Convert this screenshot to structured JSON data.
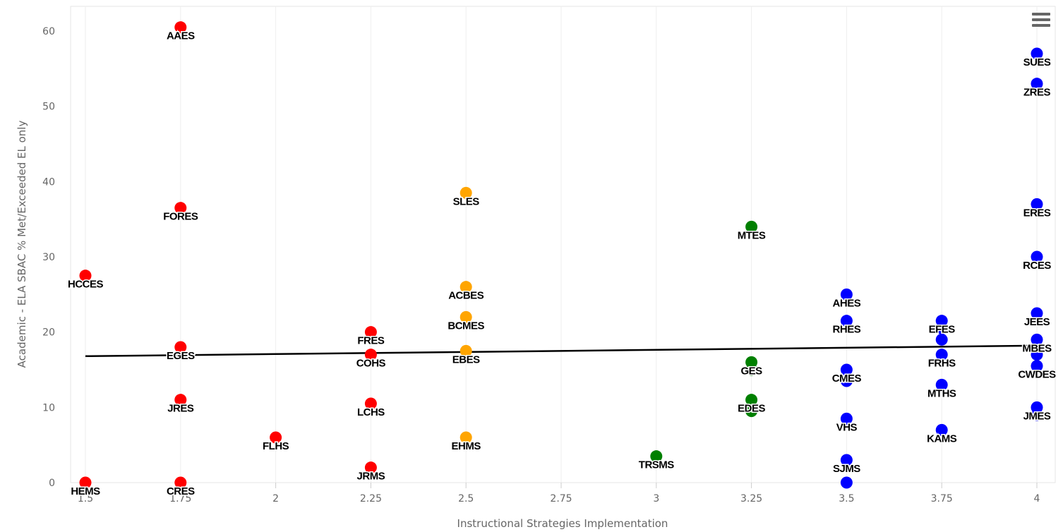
{
  "chart_data": {
    "type": "scatter",
    "xlabel": "Instructional Strategies Implementation",
    "ylabel": "Academic - ELA SBAC % Met/Exceeded EL only",
    "xlim": [
      1.5,
      4
    ],
    "ylim": [
      0,
      60
    ],
    "x_ticks": [
      "1.5",
      "1.75",
      "2",
      "2.25",
      "2.5",
      "2.75",
      "3",
      "3.25",
      "3.5",
      "3.75",
      "4"
    ],
    "y_ticks": [
      "0",
      "10",
      "20",
      "30",
      "40",
      "50",
      "60"
    ],
    "grid": "vertical",
    "colors": {
      "red": "#ff0000",
      "orange": "#ffa500",
      "green": "#008000",
      "blue": "#0000ff",
      "trend": "#000000"
    },
    "points": [
      {
        "label": "AAES",
        "x": 1.75,
        "y": 60.5,
        "color": "red"
      },
      {
        "label": "FORES",
        "x": 1.75,
        "y": 36.5,
        "color": "red"
      },
      {
        "label": "HCCES",
        "x": 1.5,
        "y": 27.5,
        "color": "red"
      },
      {
        "label": "EGES",
        "x": 1.75,
        "y": 18,
        "color": "red"
      },
      {
        "label": "JRES",
        "x": 1.75,
        "y": 11,
        "color": "red"
      },
      {
        "label": "HEMS",
        "x": 1.5,
        "y": 0,
        "color": "red"
      },
      {
        "label": "CRES",
        "x": 1.75,
        "y": 0,
        "color": "red"
      },
      {
        "label": "FLHS",
        "x": 2,
        "y": 6,
        "color": "red"
      },
      {
        "label": "FRES",
        "x": 2.25,
        "y": 20,
        "color": "red"
      },
      {
        "label": "COHS",
        "x": 2.25,
        "y": 17,
        "color": "red"
      },
      {
        "label": "LCHS",
        "x": 2.25,
        "y": 10.5,
        "color": "red"
      },
      {
        "label": "JRMS",
        "x": 2.25,
        "y": 2,
        "color": "red"
      },
      {
        "label": "SLES",
        "x": 2.5,
        "y": 38.5,
        "color": "orange"
      },
      {
        "label": "ACBES",
        "x": 2.5,
        "y": 26,
        "color": "orange"
      },
      {
        "label": "BCMES",
        "x": 2.5,
        "y": 22,
        "color": "orange"
      },
      {
        "label": "EBES",
        "x": 2.5,
        "y": 17.5,
        "color": "orange"
      },
      {
        "label": "EHMS",
        "x": 2.5,
        "y": 6,
        "color": "orange"
      },
      {
        "label": "TRSMS",
        "x": 3,
        "y": 3.5,
        "color": "green"
      },
      {
        "label": "MTES",
        "x": 3.25,
        "y": 34,
        "color": "green"
      },
      {
        "label": "GES",
        "x": 3.25,
        "y": 16,
        "color": "green"
      },
      {
        "label": "EDES",
        "x": 3.25,
        "y": 11,
        "color": "green"
      },
      {
        "label": "AHES",
        "x": 3.5,
        "y": 25,
        "color": "blue"
      },
      {
        "label": "RHES",
        "x": 3.5,
        "y": 21.5,
        "color": "blue"
      },
      {
        "label": "CMES",
        "x": 3.5,
        "y": 15,
        "color": "blue"
      },
      {
        "label": "VHS",
        "x": 3.5,
        "y": 8.5,
        "color": "blue"
      },
      {
        "label": "SJMS",
        "x": 3.5,
        "y": 3,
        "color": "blue"
      },
      {
        "label": "EFES",
        "x": 3.75,
        "y": 21.5,
        "color": "blue"
      },
      {
        "label": "FRHS",
        "x": 3.75,
        "y": 17,
        "color": "blue"
      },
      {
        "label": "MTHS",
        "x": 3.75,
        "y": 13,
        "color": "blue"
      },
      {
        "label": "KAMS",
        "x": 3.75,
        "y": 7,
        "color": "blue"
      },
      {
        "label": "SUES",
        "x": 4,
        "y": 57,
        "color": "blue"
      },
      {
        "label": "ZRES",
        "x": 4,
        "y": 53,
        "color": "blue"
      },
      {
        "label": "ERES",
        "x": 4,
        "y": 37,
        "color": "blue"
      },
      {
        "label": "RCES",
        "x": 4,
        "y": 30,
        "color": "blue"
      },
      {
        "label": "JEES",
        "x": 4,
        "y": 22.5,
        "color": "blue"
      },
      {
        "label": "MBES",
        "x": 4,
        "y": 19,
        "color": "blue"
      },
      {
        "label": "CWDES",
        "x": 4,
        "y": 15.5,
        "color": "blue"
      },
      {
        "label": "JMES",
        "x": 4,
        "y": 10,
        "color": "blue"
      }
    ],
    "extra_points": [
      {
        "x": 3.5,
        "y": 0,
        "color": "blue"
      },
      {
        "x": 3.25,
        "y": 15,
        "color": "green"
      },
      {
        "x": 3.25,
        "y": 9.5,
        "color": "green"
      },
      {
        "x": 3.75,
        "y": 20.5,
        "color": "blue"
      },
      {
        "x": 3.75,
        "y": 19,
        "color": "blue"
      },
      {
        "x": 4,
        "y": 17,
        "color": "blue"
      },
      {
        "x": 4,
        "y": 9,
        "color": "blue"
      },
      {
        "x": 3.5,
        "y": 13.5,
        "color": "blue"
      }
    ],
    "trendline": {
      "x": [
        1.5,
        4
      ],
      "y": [
        16.8,
        18.2
      ]
    }
  },
  "menu": {
    "icon": "menu-icon"
  }
}
